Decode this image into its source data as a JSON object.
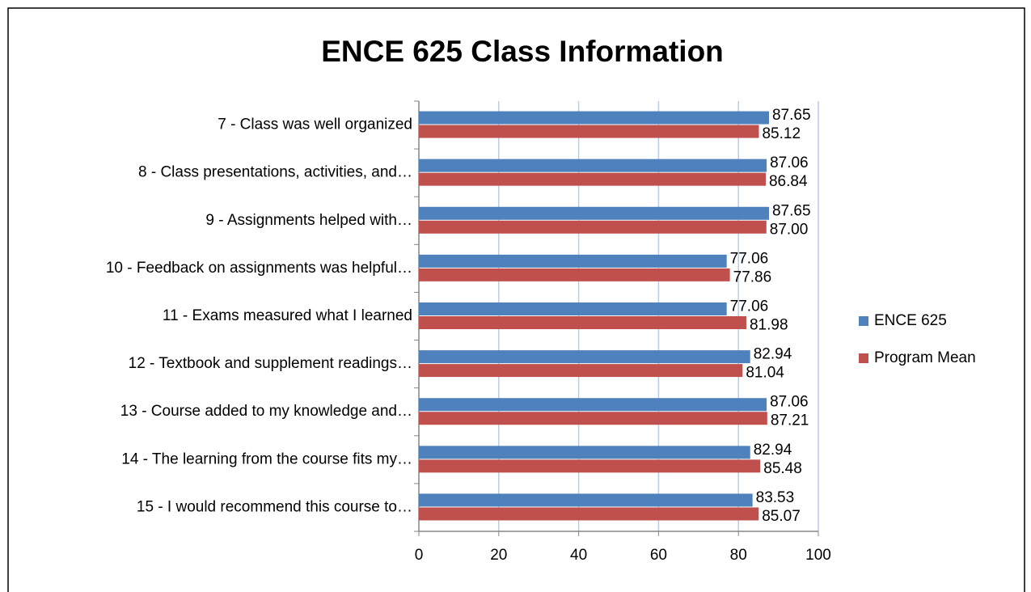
{
  "chart_data": {
    "type": "bar",
    "orientation": "horizontal",
    "title": "ENCE 625 Class Information",
    "categories": [
      "7 - Class was well organized",
      "8 - Class presentations, activities, and…",
      "9 - Assignments helped with…",
      "10 - Feedback on assignments was helpful…",
      "11 - Exams measured what I learned",
      "12 - Textbook and supplement readings…",
      "13 - Course added to my knowledge and…",
      "14 - The learning from the course fits my…",
      "15 - I would recommend this course to…"
    ],
    "series": [
      {
        "name": "ENCE 625",
        "color": "#4f81bd",
        "values": [
          87.65,
          87.06,
          87.65,
          77.06,
          77.06,
          82.94,
          87.06,
          82.94,
          83.53
        ],
        "value_labels": [
          "87.65",
          "87.06",
          "87.65",
          "77.06",
          "77.06",
          "82.94",
          "87.06",
          "82.94",
          "83.53"
        ]
      },
      {
        "name": "Program Mean",
        "color": "#c0504d",
        "values": [
          85.12,
          86.84,
          87,
          77.86,
          81.98,
          81.04,
          87.21,
          85.48,
          85.07
        ],
        "value_labels": [
          "85.12",
          "86.84",
          "87.00",
          "77.86",
          "81.98",
          "81.04",
          "87.21",
          "85.48",
          "85.07"
        ]
      }
    ],
    "xlim": [
      0,
      100
    ],
    "xticks": [
      0,
      20,
      40,
      60,
      80,
      100
    ],
    "grid": true,
    "legend": "right"
  }
}
